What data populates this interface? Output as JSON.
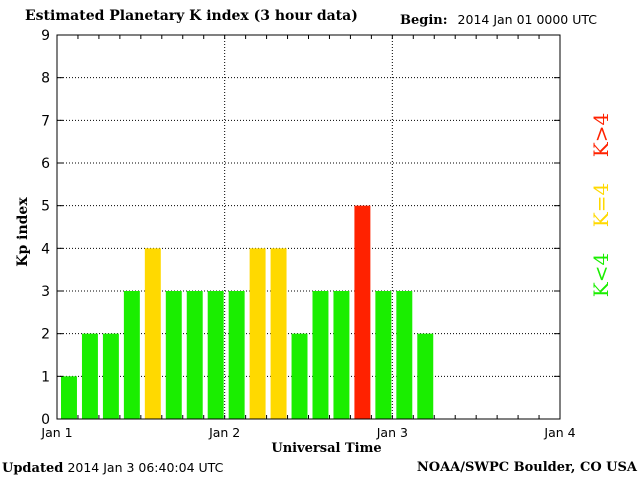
{
  "header": {
    "title": "Estimated Planetary K index (3 hour data)",
    "begin_label": "Begin:",
    "begin_value": "2014 Jan 01 0000 UTC"
  },
  "footer": {
    "updated_label": "Updated",
    "updated_value": "2014 Jan  3 06:40:04 UTC",
    "source": "NOAA/SWPC Boulder, CO USA"
  },
  "chart_data": {
    "type": "bar",
    "title": "Estimated Planetary K index (3 hour data)",
    "xlabel": "Universal Time",
    "ylabel": "Kp index",
    "ylim": [
      0,
      9
    ],
    "yticks": [
      "0",
      "1",
      "2",
      "3",
      "4",
      "5",
      "6",
      "7",
      "8",
      "9"
    ],
    "xticks": [
      "Jan 1",
      "Jan 2",
      "Jan 3",
      "Jan 4"
    ],
    "bins_per_day": 8,
    "total_bins": 24,
    "values": [
      1,
      2,
      2,
      3,
      4,
      3,
      3,
      3,
      3,
      4,
      4,
      2,
      3,
      3,
      5,
      3,
      3,
      2
    ],
    "grid": true,
    "legend": {
      "placement": "right",
      "entries": [
        {
          "label": "K<4",
          "color": "#1aee00"
        },
        {
          "label": "K=4",
          "color": "#ffd900"
        },
        {
          "label": "K>4",
          "color": "#ff2200"
        }
      ]
    },
    "colors": {
      "low": "#1aee00",
      "mid": "#ffd900",
      "high": "#ff2200"
    }
  }
}
